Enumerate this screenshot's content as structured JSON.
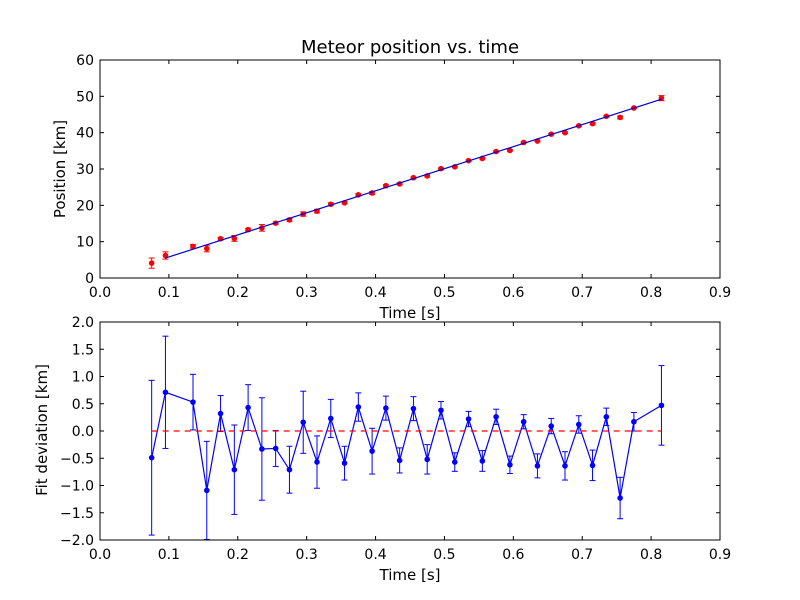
{
  "chart_data": [
    {
      "type": "scatter",
      "title": "Meteor position vs. time",
      "xlabel": "Time [s]",
      "ylabel": "Position [km]",
      "xlim": [
        0.0,
        0.9
      ],
      "ylim": [
        0,
        60
      ],
      "xticks": [
        "0.0",
        "0.1",
        "0.2",
        "0.3",
        "0.4",
        "0.5",
        "0.6",
        "0.7",
        "0.8",
        "0.9"
      ],
      "yticks": [
        "0",
        "10",
        "20",
        "30",
        "40",
        "50",
        "60"
      ],
      "grid": false,
      "series": [
        {
          "kind": "errorbar-points",
          "color": "#ff0000",
          "x": [
            0.075,
            0.095,
            0.135,
            0.155,
            0.175,
            0.195,
            0.215,
            0.235,
            0.255,
            0.275,
            0.295,
            0.315,
            0.335,
            0.355,
            0.375,
            0.395,
            0.415,
            0.435,
            0.455,
            0.475,
            0.495,
            0.515,
            0.535,
            0.555,
            0.575,
            0.595,
            0.615,
            0.635,
            0.655,
            0.675,
            0.695,
            0.715,
            0.735,
            0.755,
            0.775,
            0.815
          ],
          "y": [
            4.1,
            6.2,
            8.7,
            8.1,
            10.8,
            10.9,
            13.3,
            13.8,
            15.1,
            16.0,
            17.6,
            18.4,
            20.3,
            20.7,
            22.9,
            23.4,
            25.4,
            25.9,
            27.6,
            28.1,
            30.1,
            30.6,
            32.3,
            32.9,
            34.8,
            35.1,
            37.3,
            37.7,
            39.6,
            40.0,
            41.9,
            42.5,
            44.5,
            44.2,
            46.8,
            49.5
          ],
          "yerr": [
            1.4,
            1.0,
            0.5,
            0.9,
            0.4,
            0.8,
            0.4,
            0.9,
            0.3,
            0.4,
            0.6,
            0.5,
            0.4,
            0.3,
            0.3,
            0.4,
            0.3,
            0.3,
            0.2,
            0.3,
            0.2,
            0.2,
            0.2,
            0.2,
            0.2,
            0.2,
            0.2,
            0.2,
            0.2,
            0.2,
            0.2,
            0.3,
            0.2,
            0.4,
            0.2,
            0.7
          ]
        },
        {
          "kind": "fit-line",
          "color": "#0000cc",
          "x": [
            0.095,
            0.815
          ],
          "y": [
            5.5,
            49.2
          ]
        }
      ]
    },
    {
      "type": "line",
      "xlabel": "Time [s]",
      "ylabel": "Fit deviation [km]",
      "xlim": [
        0.0,
        0.9
      ],
      "ylim": [
        -2.0,
        2.0
      ],
      "xticks": [
        "0.0",
        "0.1",
        "0.2",
        "0.3",
        "0.4",
        "0.5",
        "0.6",
        "0.7",
        "0.8",
        "0.9"
      ],
      "yticks": [
        "−2.0",
        "−1.5",
        "−1.0",
        "−0.5",
        "0.0",
        "0.5",
        "1.0",
        "1.5",
        "2.0"
      ],
      "grid": false,
      "series": [
        {
          "kind": "errorbar-line",
          "color": "#0000ff",
          "x": [
            0.075,
            0.095,
            0.135,
            0.155,
            0.175,
            0.195,
            0.215,
            0.235,
            0.255,
            0.275,
            0.295,
            0.315,
            0.335,
            0.355,
            0.375,
            0.395,
            0.415,
            0.435,
            0.455,
            0.475,
            0.495,
            0.515,
            0.535,
            0.555,
            0.575,
            0.595,
            0.615,
            0.635,
            0.655,
            0.675,
            0.695,
            0.715,
            0.735,
            0.755,
            0.775,
            0.815
          ],
          "y": [
            -0.49,
            0.71,
            0.53,
            -1.09,
            0.32,
            -0.71,
            0.43,
            -0.33,
            -0.32,
            -0.71,
            0.16,
            -0.57,
            0.23,
            -0.59,
            0.44,
            -0.37,
            0.42,
            -0.54,
            0.41,
            -0.52,
            0.38,
            -0.57,
            0.22,
            -0.55,
            0.26,
            -0.62,
            0.17,
            -0.64,
            0.09,
            -0.64,
            0.12,
            -0.63,
            0.26,
            -1.23,
            0.17,
            0.47
          ],
          "yerr": [
            1.42,
            1.03,
            0.51,
            0.9,
            0.33,
            0.82,
            0.42,
            0.94,
            0.33,
            0.43,
            0.57,
            0.48,
            0.35,
            0.31,
            0.26,
            0.42,
            0.22,
            0.23,
            0.22,
            0.27,
            0.16,
            0.17,
            0.14,
            0.19,
            0.14,
            0.16,
            0.13,
            0.22,
            0.14,
            0.26,
            0.16,
            0.28,
            0.16,
            0.38,
            0.17,
            0.73
          ]
        },
        {
          "kind": "zero-line",
          "color": "#ff0000",
          "x": [
            0.075,
            0.815
          ],
          "y": [
            0.0,
            0.0
          ]
        }
      ]
    }
  ]
}
